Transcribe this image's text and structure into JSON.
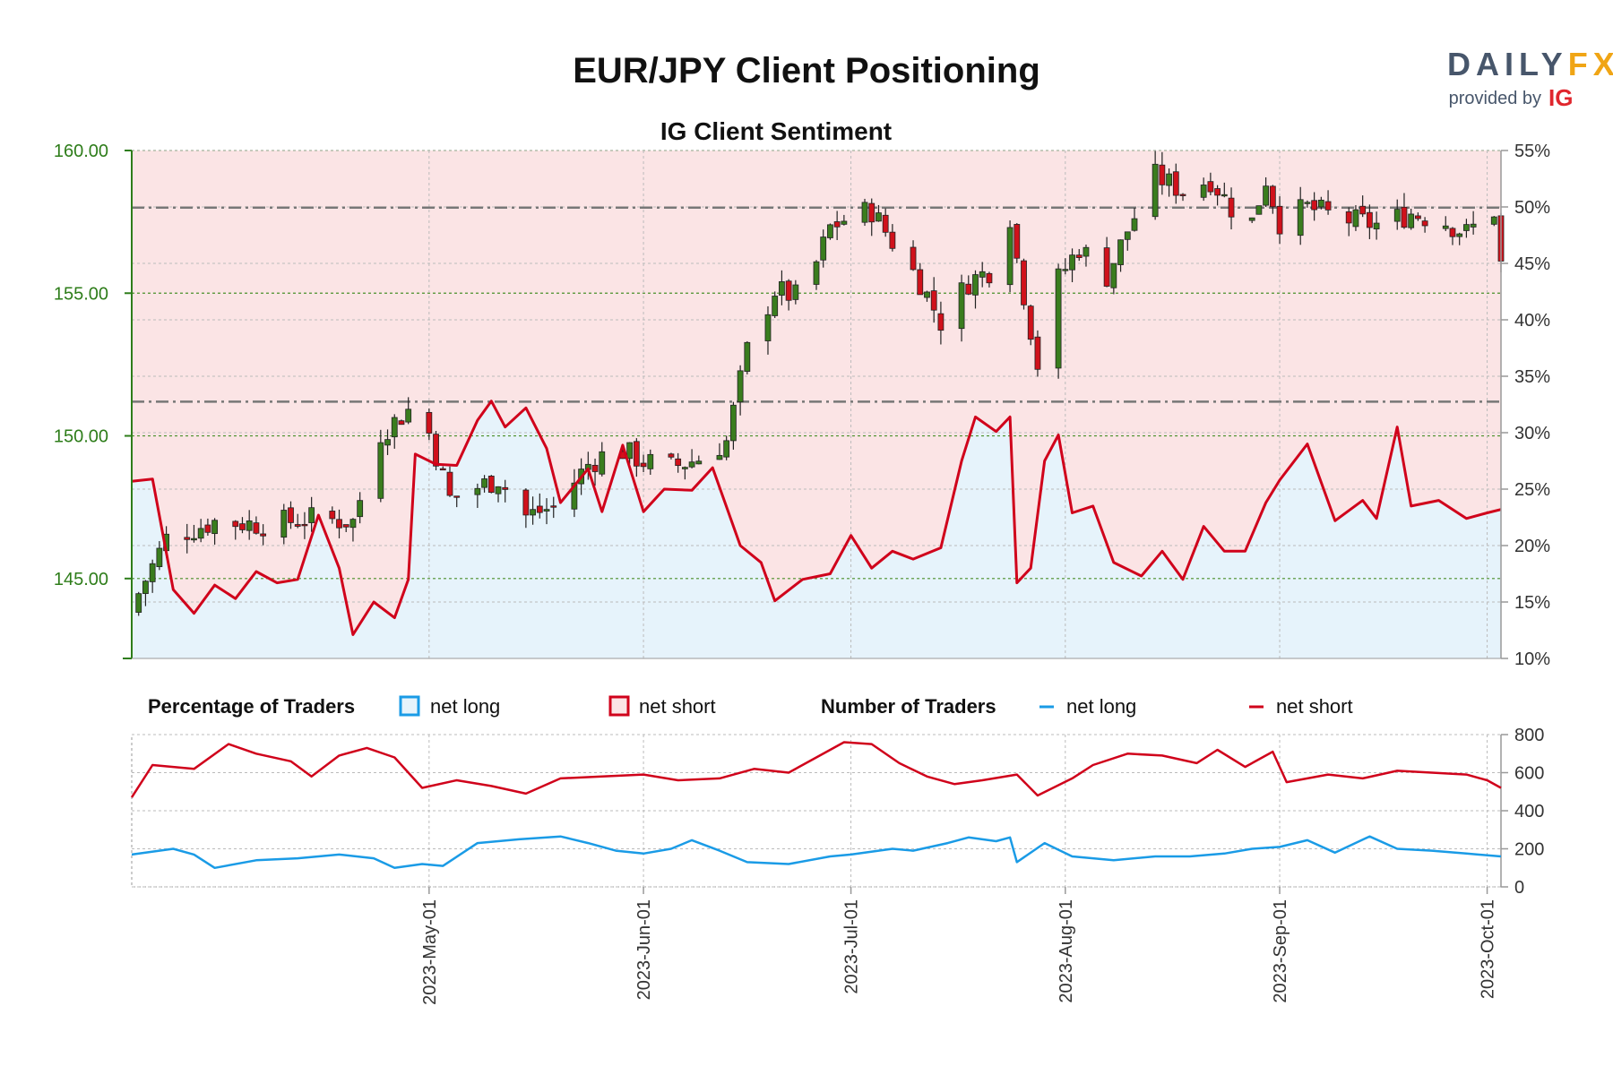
{
  "title": "EUR/JPY Client Positioning",
  "subtitle": "IG Client Sentiment",
  "brand": {
    "logo_left": "DAILY",
    "logo_right": "FX",
    "provided_by": "provided by",
    "provider": "IG"
  },
  "colors": {
    "long": "#1a9be6",
    "short": "#d0021b",
    "long_fill": "#e6f3fb",
    "short_fill": "#fbe4e5",
    "price_axis": "#2e7d1a",
    "candle_up": "#3a7d1e",
    "candle_down": "#d0111b"
  },
  "legend": {
    "pct_title": "Percentage of Traders",
    "pct_long": "net long",
    "pct_short": "net short",
    "num_title": "Number of Traders",
    "num_long": "net long",
    "num_short": "net short"
  },
  "chart_data": [
    {
      "type": "candlestick+area",
      "title": "IG Client Sentiment",
      "x_labels": [
        "2023-May-01",
        "2023-Jun-01",
        "2023-Jul-01",
        "2023-Aug-01",
        "2023-Sep-01",
        "2023-Oct-01"
      ],
      "x_label_dates": [
        "2023-05-01",
        "2023-06-01",
        "2023-07-01",
        "2023-08-01",
        "2023-09-01",
        "2023-10-01"
      ],
      "x_range": [
        "2023-03-19",
        "2023-10-03"
      ],
      "price_axis": {
        "side": "left",
        "ylim": [
          142.2,
          160.0
        ],
        "ticks": [
          "145.00",
          "150.00",
          "155.00",
          "160.00"
        ]
      },
      "pct_axis": {
        "side": "right",
        "ylim": [
          10,
          55
        ],
        "ticks": [
          "10%",
          "15%",
          "20%",
          "25%",
          "30%",
          "35%",
          "40%",
          "45%",
          "50%",
          "55%"
        ]
      },
      "reference_lines": [
        158.0,
        151.2
      ],
      "grid": true,
      "candle_anchors": [
        [
          "2023-03-19",
          144.0
        ],
        [
          "2023-03-24",
          146.4
        ],
        [
          "2023-03-31",
          147.0
        ],
        [
          "2023-04-07",
          146.9
        ],
        [
          "2023-04-14",
          147.1
        ],
        [
          "2023-04-20",
          147.0
        ],
        [
          "2023-04-24",
          150.1
        ],
        [
          "2023-04-28",
          150.9
        ],
        [
          "2023-05-01",
          150.1
        ],
        [
          "2023-05-04",
          147.8
        ],
        [
          "2023-05-11",
          148.5
        ],
        [
          "2023-05-15",
          147.2
        ],
        [
          "2023-05-19",
          147.5
        ],
        [
          "2023-05-24",
          149.0
        ],
        [
          "2023-05-28",
          149.6
        ],
        [
          "2023-06-01",
          149.1
        ],
        [
          "2023-06-05",
          148.9
        ],
        [
          "2023-06-09",
          149.2
        ],
        [
          "2023-06-13",
          149.8
        ],
        [
          "2023-06-16",
          153.0
        ],
        [
          "2023-06-20",
          155.1
        ],
        [
          "2023-06-24",
          154.8
        ],
        [
          "2023-06-28",
          157.3
        ],
        [
          "2023-07-01",
          157.7
        ],
        [
          "2023-07-04",
          157.9
        ],
        [
          "2023-07-07",
          156.8
        ],
        [
          "2023-07-11",
          155.4
        ],
        [
          "2023-07-14",
          154.0
        ],
        [
          "2023-07-18",
          155.4
        ],
        [
          "2023-07-21",
          155.8
        ],
        [
          "2023-07-24",
          157.7
        ],
        [
          "2023-07-25",
          156.2
        ],
        [
          "2023-07-28",
          152.5
        ],
        [
          "2023-07-31",
          155.5
        ],
        [
          "2023-08-03",
          156.6
        ],
        [
          "2023-08-07",
          155.6
        ],
        [
          "2023-08-10",
          157.2
        ],
        [
          "2023-08-14",
          159.1
        ],
        [
          "2023-08-18",
          158.6
        ],
        [
          "2023-08-22",
          159.0
        ],
        [
          "2023-08-25",
          158.0
        ],
        [
          "2023-08-28",
          157.5
        ],
        [
          "2023-08-30",
          159.0
        ],
        [
          "2023-09-01",
          157.5
        ],
        [
          "2023-09-05",
          158.0
        ],
        [
          "2023-09-10",
          157.6
        ],
        [
          "2023-09-15",
          157.4
        ],
        [
          "2023-09-20",
          157.8
        ],
        [
          "2023-09-25",
          157.5
        ],
        [
          "2023-09-28",
          157.1
        ],
        [
          "2023-10-02",
          157.9
        ],
        [
          "2023-10-03",
          156.0
        ]
      ],
      "series": [
        {
          "name": "net short",
          "values_pct_net_long": [
            [
              "2023-03-19",
              25.7
            ],
            [
              "2023-03-22",
              25.9
            ],
            [
              "2023-03-25",
              16.1
            ],
            [
              "2023-03-28",
              14.0
            ],
            [
              "2023-03-31",
              16.5
            ],
            [
              "2023-04-03",
              15.3
            ],
            [
              "2023-04-06",
              17.7
            ],
            [
              "2023-04-09",
              16.7
            ],
            [
              "2023-04-12",
              17.0
            ],
            [
              "2023-04-15",
              22.7
            ],
            [
              "2023-04-18",
              18.0
            ],
            [
              "2023-04-20",
              12.1
            ],
            [
              "2023-04-23",
              15.0
            ],
            [
              "2023-04-26",
              13.6
            ],
            [
              "2023-04-28",
              17.0
            ],
            [
              "2023-04-29",
              28.1
            ],
            [
              "2023-05-02",
              27.2
            ],
            [
              "2023-05-05",
              27.1
            ],
            [
              "2023-05-08",
              31.1
            ],
            [
              "2023-05-10",
              32.8
            ],
            [
              "2023-05-12",
              30.5
            ],
            [
              "2023-05-15",
              32.2
            ],
            [
              "2023-05-18",
              28.6
            ],
            [
              "2023-05-20",
              23.8
            ],
            [
              "2023-05-24",
              26.8
            ],
            [
              "2023-05-26",
              23.0
            ],
            [
              "2023-05-29",
              28.9
            ],
            [
              "2023-06-01",
              23.0
            ],
            [
              "2023-06-04",
              25.0
            ],
            [
              "2023-06-08",
              24.9
            ],
            [
              "2023-06-11",
              26.9
            ],
            [
              "2023-06-15",
              20.0
            ],
            [
              "2023-06-18",
              18.5
            ],
            [
              "2023-06-20",
              15.1
            ],
            [
              "2023-06-24",
              17.0
            ],
            [
              "2023-06-28",
              17.5
            ],
            [
              "2023-07-01",
              20.9
            ],
            [
              "2023-07-04",
              18.0
            ],
            [
              "2023-07-07",
              19.5
            ],
            [
              "2023-07-10",
              18.8
            ],
            [
              "2023-07-14",
              19.8
            ],
            [
              "2023-07-17",
              27.5
            ],
            [
              "2023-07-19",
              31.4
            ],
            [
              "2023-07-22",
              30.1
            ],
            [
              "2023-07-24",
              31.4
            ],
            [
              "2023-07-25",
              16.7
            ],
            [
              "2023-07-27",
              18.0
            ],
            [
              "2023-07-29",
              27.5
            ],
            [
              "2023-07-31",
              29.8
            ],
            [
              "2023-08-02",
              22.9
            ],
            [
              "2023-08-05",
              23.5
            ],
            [
              "2023-08-08",
              18.5
            ],
            [
              "2023-08-12",
              17.3
            ],
            [
              "2023-08-15",
              19.5
            ],
            [
              "2023-08-18",
              17.0
            ],
            [
              "2023-08-21",
              21.7
            ],
            [
              "2023-08-24",
              19.5
            ],
            [
              "2023-08-27",
              19.5
            ],
            [
              "2023-08-30",
              23.8
            ],
            [
              "2023-09-01",
              25.8
            ],
            [
              "2023-09-05",
              29.0
            ],
            [
              "2023-09-09",
              22.2
            ],
            [
              "2023-09-13",
              24.0
            ],
            [
              "2023-09-15",
              22.4
            ],
            [
              "2023-09-18",
              30.5
            ],
            [
              "2023-09-20",
              23.5
            ],
            [
              "2023-09-24",
              24.0
            ],
            [
              "2023-09-28",
              22.4
            ],
            [
              "2023-10-01",
              22.9
            ],
            [
              "2023-10-03",
              23.2
            ]
          ]
        }
      ]
    },
    {
      "type": "line",
      "title": "Number of Traders",
      "y_axis": {
        "side": "right",
        "ylim": [
          0,
          800
        ],
        "ticks": [
          "0",
          "200",
          "400",
          "600",
          "800"
        ]
      },
      "series": [
        {
          "name": "net long",
          "values": [
            [
              "2023-03-19",
              170
            ],
            [
              "2023-03-25",
              200
            ],
            [
              "2023-03-28",
              170
            ],
            [
              "2023-03-31",
              100
            ],
            [
              "2023-04-06",
              140
            ],
            [
              "2023-04-12",
              150
            ],
            [
              "2023-04-18",
              170
            ],
            [
              "2023-04-23",
              150
            ],
            [
              "2023-04-26",
              100
            ],
            [
              "2023-04-30",
              120
            ],
            [
              "2023-05-03",
              110
            ],
            [
              "2023-05-08",
              230
            ],
            [
              "2023-05-14",
              250
            ],
            [
              "2023-05-20",
              265
            ],
            [
              "2023-05-24",
              230
            ],
            [
              "2023-05-28",
              190
            ],
            [
              "2023-06-01",
              175
            ],
            [
              "2023-06-05",
              200
            ],
            [
              "2023-06-08",
              245
            ],
            [
              "2023-06-12",
              190
            ],
            [
              "2023-06-16",
              130
            ],
            [
              "2023-06-22",
              120
            ],
            [
              "2023-06-28",
              160
            ],
            [
              "2023-07-01",
              170
            ],
            [
              "2023-07-07",
              200
            ],
            [
              "2023-07-10",
              190
            ],
            [
              "2023-07-15",
              230
            ],
            [
              "2023-07-18",
              260
            ],
            [
              "2023-07-22",
              240
            ],
            [
              "2023-07-24",
              260
            ],
            [
              "2023-07-25",
              130
            ],
            [
              "2023-07-29",
              230
            ],
            [
              "2023-08-02",
              160
            ],
            [
              "2023-08-08",
              140
            ],
            [
              "2023-08-14",
              160
            ],
            [
              "2023-08-19",
              160
            ],
            [
              "2023-08-24",
              175
            ],
            [
              "2023-08-28",
              200
            ],
            [
              "2023-09-01",
              210
            ],
            [
              "2023-09-05",
              245
            ],
            [
              "2023-09-09",
              180
            ],
            [
              "2023-09-14",
              265
            ],
            [
              "2023-09-18",
              200
            ],
            [
              "2023-09-23",
              190
            ],
            [
              "2023-09-28",
              175
            ],
            [
              "2023-10-03",
              160
            ]
          ]
        },
        {
          "name": "net short",
          "values": [
            [
              "2023-03-19",
              470
            ],
            [
              "2023-03-22",
              640
            ],
            [
              "2023-03-28",
              620
            ],
            [
              "2023-04-02",
              750
            ],
            [
              "2023-04-06",
              700
            ],
            [
              "2023-04-11",
              660
            ],
            [
              "2023-04-14",
              580
            ],
            [
              "2023-04-18",
              690
            ],
            [
              "2023-04-22",
              730
            ],
            [
              "2023-04-26",
              680
            ],
            [
              "2023-04-30",
              520
            ],
            [
              "2023-05-05",
              560
            ],
            [
              "2023-05-10",
              530
            ],
            [
              "2023-05-15",
              490
            ],
            [
              "2023-05-20",
              570
            ],
            [
              "2023-05-26",
              580
            ],
            [
              "2023-06-01",
              590
            ],
            [
              "2023-06-06",
              560
            ],
            [
              "2023-06-12",
              570
            ],
            [
              "2023-06-17",
              620
            ],
            [
              "2023-06-22",
              600
            ],
            [
              "2023-06-26",
              680
            ],
            [
              "2023-06-30",
              760
            ],
            [
              "2023-07-04",
              750
            ],
            [
              "2023-07-08",
              650
            ],
            [
              "2023-07-12",
              580
            ],
            [
              "2023-07-16",
              540
            ],
            [
              "2023-07-20",
              560
            ],
            [
              "2023-07-25",
              590
            ],
            [
              "2023-07-28",
              480
            ],
            [
              "2023-08-02",
              570
            ],
            [
              "2023-08-05",
              640
            ],
            [
              "2023-08-10",
              700
            ],
            [
              "2023-08-15",
              690
            ],
            [
              "2023-08-20",
              650
            ],
            [
              "2023-08-23",
              720
            ],
            [
              "2023-08-27",
              630
            ],
            [
              "2023-08-31",
              710
            ],
            [
              "2023-09-02",
              550
            ],
            [
              "2023-09-08",
              590
            ],
            [
              "2023-09-13",
              570
            ],
            [
              "2023-09-18",
              610
            ],
            [
              "2023-09-23",
              600
            ],
            [
              "2023-09-28",
              590
            ],
            [
              "2023-10-01",
              560
            ],
            [
              "2023-10-03",
              520
            ]
          ]
        }
      ]
    }
  ]
}
